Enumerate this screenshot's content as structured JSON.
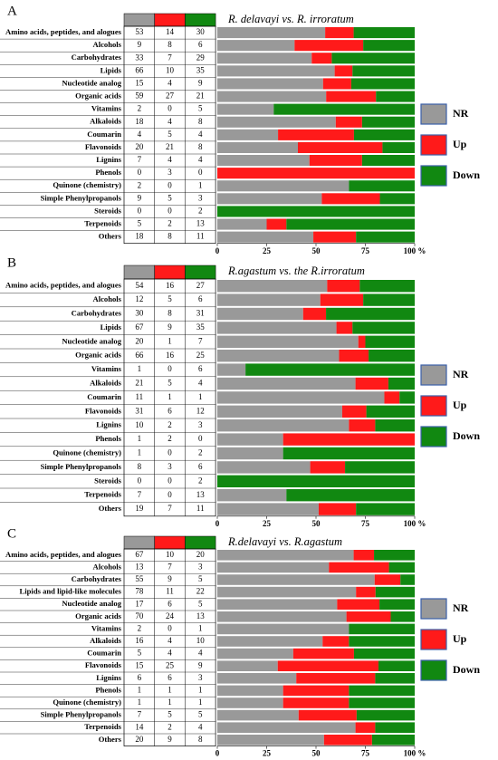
{
  "chart_data": [
    {
      "type": "bar",
      "label": "A",
      "title": "R. delavayi vs. R. irroratum",
      "categories": [
        "Amino acids, peptides, and alogues",
        "Alcohols",
        "Carbohydrates",
        "Lipids",
        "Nucleotide analog",
        "Organic acids",
        "Vitamins",
        "Alkaloids",
        "Coumarin",
        "Flavonoids",
        "Lignins",
        "Phenols",
        "Quinone (chemistry)",
        "Simple Phenylpropanols",
        "Steroids",
        "Terpenoids",
        "Others"
      ],
      "series": [
        {
          "name": "NR",
          "color": "#999999",
          "values": [
            53,
            9,
            33,
            66,
            15,
            59,
            2,
            18,
            4,
            20,
            7,
            0,
            2,
            9,
            0,
            5,
            18
          ]
        },
        {
          "name": "Up",
          "color": "#ff1a1a",
          "values": [
            14,
            8,
            7,
            10,
            4,
            27,
            0,
            4,
            5,
            21,
            4,
            3,
            0,
            5,
            0,
            2,
            8
          ]
        },
        {
          "name": "Down",
          "color": "#118811",
          "values": [
            30,
            6,
            29,
            35,
            9,
            21,
            5,
            8,
            4,
            8,
            4,
            0,
            1,
            3,
            2,
            13,
            11
          ]
        }
      ],
      "xlim": [
        0,
        100
      ],
      "xticks": [
        0,
        25,
        50,
        75,
        {
          "value": 100,
          "label": "100 %"
        }
      ]
    },
    {
      "type": "bar",
      "label": "B",
      "title": "R.agastum vs. the R.irroratum",
      "categories": [
        "Amino acids, peptides, and alogues",
        "Alcohols",
        "Carbohydrates",
        "Lipids",
        "Nucleotide analog",
        "Organic acids",
        "Vitamins",
        "Alkaloids",
        "Coumarin",
        "Flavonoids",
        "Lignins",
        "Phenols",
        "Quinone (chemistry)",
        "Simple Phenylpropanols",
        "Steroids",
        "Terpenoids",
        "Others"
      ],
      "series": [
        {
          "name": "NR",
          "color": "#999999",
          "values": [
            54,
            12,
            30,
            67,
            20,
            66,
            1,
            21,
            11,
            31,
            10,
            1,
            1,
            8,
            0,
            7,
            19
          ]
        },
        {
          "name": "Up",
          "color": "#ff1a1a",
          "values": [
            16,
            5,
            8,
            9,
            1,
            16,
            0,
            5,
            1,
            6,
            2,
            2,
            0,
            3,
            0,
            0,
            7
          ]
        },
        {
          "name": "Down",
          "color": "#118811",
          "values": [
            27,
            6,
            31,
            35,
            7,
            25,
            6,
            4,
            1,
            12,
            3,
            0,
            2,
            6,
            2,
            13,
            11
          ]
        }
      ],
      "xlim": [
        0,
        100
      ],
      "xticks": [
        0,
        25,
        50,
        75,
        {
          "value": 100,
          "label": "100 %"
        }
      ]
    },
    {
      "type": "bar",
      "label": "C",
      "title": "R.delavayi vs. R.agastum",
      "categories": [
        "Amino acids, peptides, and alogues",
        "Alcohols",
        "Carbohydrates",
        "Lipids and lipid-like molecules",
        "Nucleotide analog",
        "Organic acids",
        "Vitamins",
        "Alkaloids",
        "Coumarin",
        "Flavonoids",
        "Lignins",
        "Phenols",
        "Quinone (chemistry)",
        "Simple Phenylpropanols",
        "Terpenoids",
        "Others"
      ],
      "series": [
        {
          "name": "NR",
          "color": "#999999",
          "values": [
            67,
            13,
            55,
            78,
            17,
            70,
            2,
            16,
            5,
            15,
            6,
            1,
            1,
            7,
            14,
            20
          ]
        },
        {
          "name": "Up",
          "color": "#ff1a1a",
          "values": [
            10,
            7,
            9,
            11,
            6,
            24,
            0,
            4,
            4,
            25,
            6,
            1,
            1,
            5,
            2,
            9
          ]
        },
        {
          "name": "Down",
          "color": "#118811",
          "values": [
            20,
            3,
            5,
            22,
            5,
            13,
            1,
            10,
            4,
            9,
            3,
            1,
            1,
            5,
            4,
            8
          ]
        }
      ],
      "xlim": [
        0,
        100
      ],
      "xticks": [
        0,
        25,
        50,
        75,
        {
          "value": 100,
          "label": "100 %"
        }
      ]
    }
  ]
}
